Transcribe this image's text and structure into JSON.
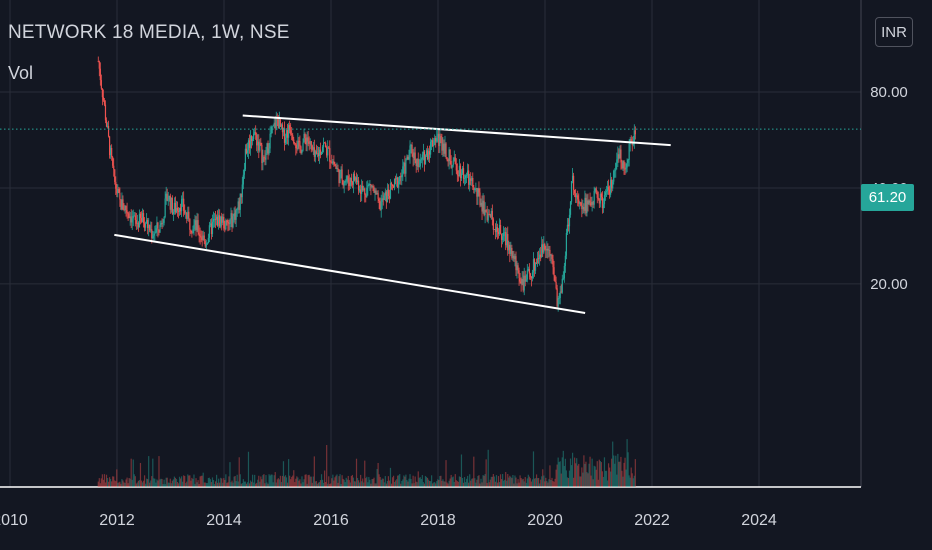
{
  "header": {
    "title": "NETWORK 18 MEDIA, 1W, NSE",
    "volume_label": "Vol",
    "currency": "INR"
  },
  "last_price_label": "61.20",
  "colors": {
    "background": "#131722",
    "grid": "#2a2e39",
    "text": "#d1d4dc",
    "up": "#26a69a",
    "down": "#ef5350",
    "trendline": "#ffffff",
    "last_price": "#26a69a"
  },
  "chart_data": {
    "type": "candlestick",
    "title": "NETWORK 18 MEDIA, 1W, NSE",
    "x_ticks": [
      "2010",
      "2012",
      "2014",
      "2016",
      "2018",
      "2020",
      "2022",
      "2024"
    ],
    "y_ticks": [
      "20.00",
      "40.00",
      "80.00"
    ],
    "y_scale": "log",
    "xlim": [
      2010.0,
      2025.4
    ],
    "ylim": [
      15,
      100
    ],
    "grid": true,
    "last_price": 61.2,
    "price_path": [
      [
        2011.65,
        100
      ],
      [
        2011.75,
        75
      ],
      [
        2011.85,
        55
      ],
      [
        2011.95,
        42
      ],
      [
        2012.05,
        36
      ],
      [
        2012.2,
        34
      ],
      [
        2012.35,
        31
      ],
      [
        2012.5,
        32
      ],
      [
        2012.65,
        29
      ],
      [
        2012.8,
        30
      ],
      [
        2012.95,
        38
      ],
      [
        2013.05,
        34
      ],
      [
        2013.2,
        36
      ],
      [
        2013.35,
        31
      ],
      [
        2013.5,
        30
      ],
      [
        2013.65,
        27
      ],
      [
        2013.8,
        31
      ],
      [
        2013.95,
        32
      ],
      [
        2014.05,
        30
      ],
      [
        2014.2,
        33
      ],
      [
        2014.3,
        36
      ],
      [
        2014.4,
        52
      ],
      [
        2014.55,
        60
      ],
      [
        2014.65,
        55
      ],
      [
        2014.75,
        48
      ],
      [
        2014.85,
        57
      ],
      [
        2015.0,
        66
      ],
      [
        2015.1,
        58
      ],
      [
        2015.25,
        62
      ],
      [
        2015.4,
        53
      ],
      [
        2015.55,
        58
      ],
      [
        2015.7,
        49
      ],
      [
        2015.85,
        55
      ],
      [
        2016.0,
        50
      ],
      [
        2016.15,
        44
      ],
      [
        2016.3,
        42
      ],
      [
        2016.45,
        43
      ],
      [
        2016.6,
        39
      ],
      [
        2016.75,
        41
      ],
      [
        2016.9,
        35
      ],
      [
        2017.05,
        38
      ],
      [
        2017.2,
        41
      ],
      [
        2017.35,
        45
      ],
      [
        2017.5,
        53
      ],
      [
        2017.65,
        47
      ],
      [
        2017.8,
        52
      ],
      [
        2017.95,
        58
      ],
      [
        2018.1,
        55
      ],
      [
        2018.25,
        48
      ],
      [
        2018.4,
        46
      ],
      [
        2018.55,
        43
      ],
      [
        2018.7,
        39
      ],
      [
        2018.85,
        35
      ],
      [
        2019.0,
        32
      ],
      [
        2019.15,
        29
      ],
      [
        2019.3,
        27
      ],
      [
        2019.45,
        23
      ],
      [
        2019.6,
        20
      ],
      [
        2019.75,
        22
      ],
      [
        2019.9,
        25
      ],
      [
        2020.05,
        27
      ],
      [
        2020.15,
        22
      ],
      [
        2020.25,
        17
      ],
      [
        2020.35,
        22
      ],
      [
        2020.5,
        42
      ],
      [
        2020.65,
        37
      ],
      [
        2020.8,
        35
      ],
      [
        2020.95,
        38
      ],
      [
        2021.1,
        36
      ],
      [
        2021.25,
        41
      ],
      [
        2021.4,
        51
      ],
      [
        2021.5,
        46
      ],
      [
        2021.6,
        55
      ],
      [
        2021.7,
        60
      ]
    ],
    "trendlines": [
      {
        "from": [
          2014.35,
          67.5
        ],
        "to": [
          2022.35,
          54.5
        ]
      },
      {
        "from": [
          2011.95,
          28.5
        ],
        "to": [
          2020.75,
          16.2
        ]
      }
    ],
    "volume": {
      "relative_scale": true
    }
  }
}
